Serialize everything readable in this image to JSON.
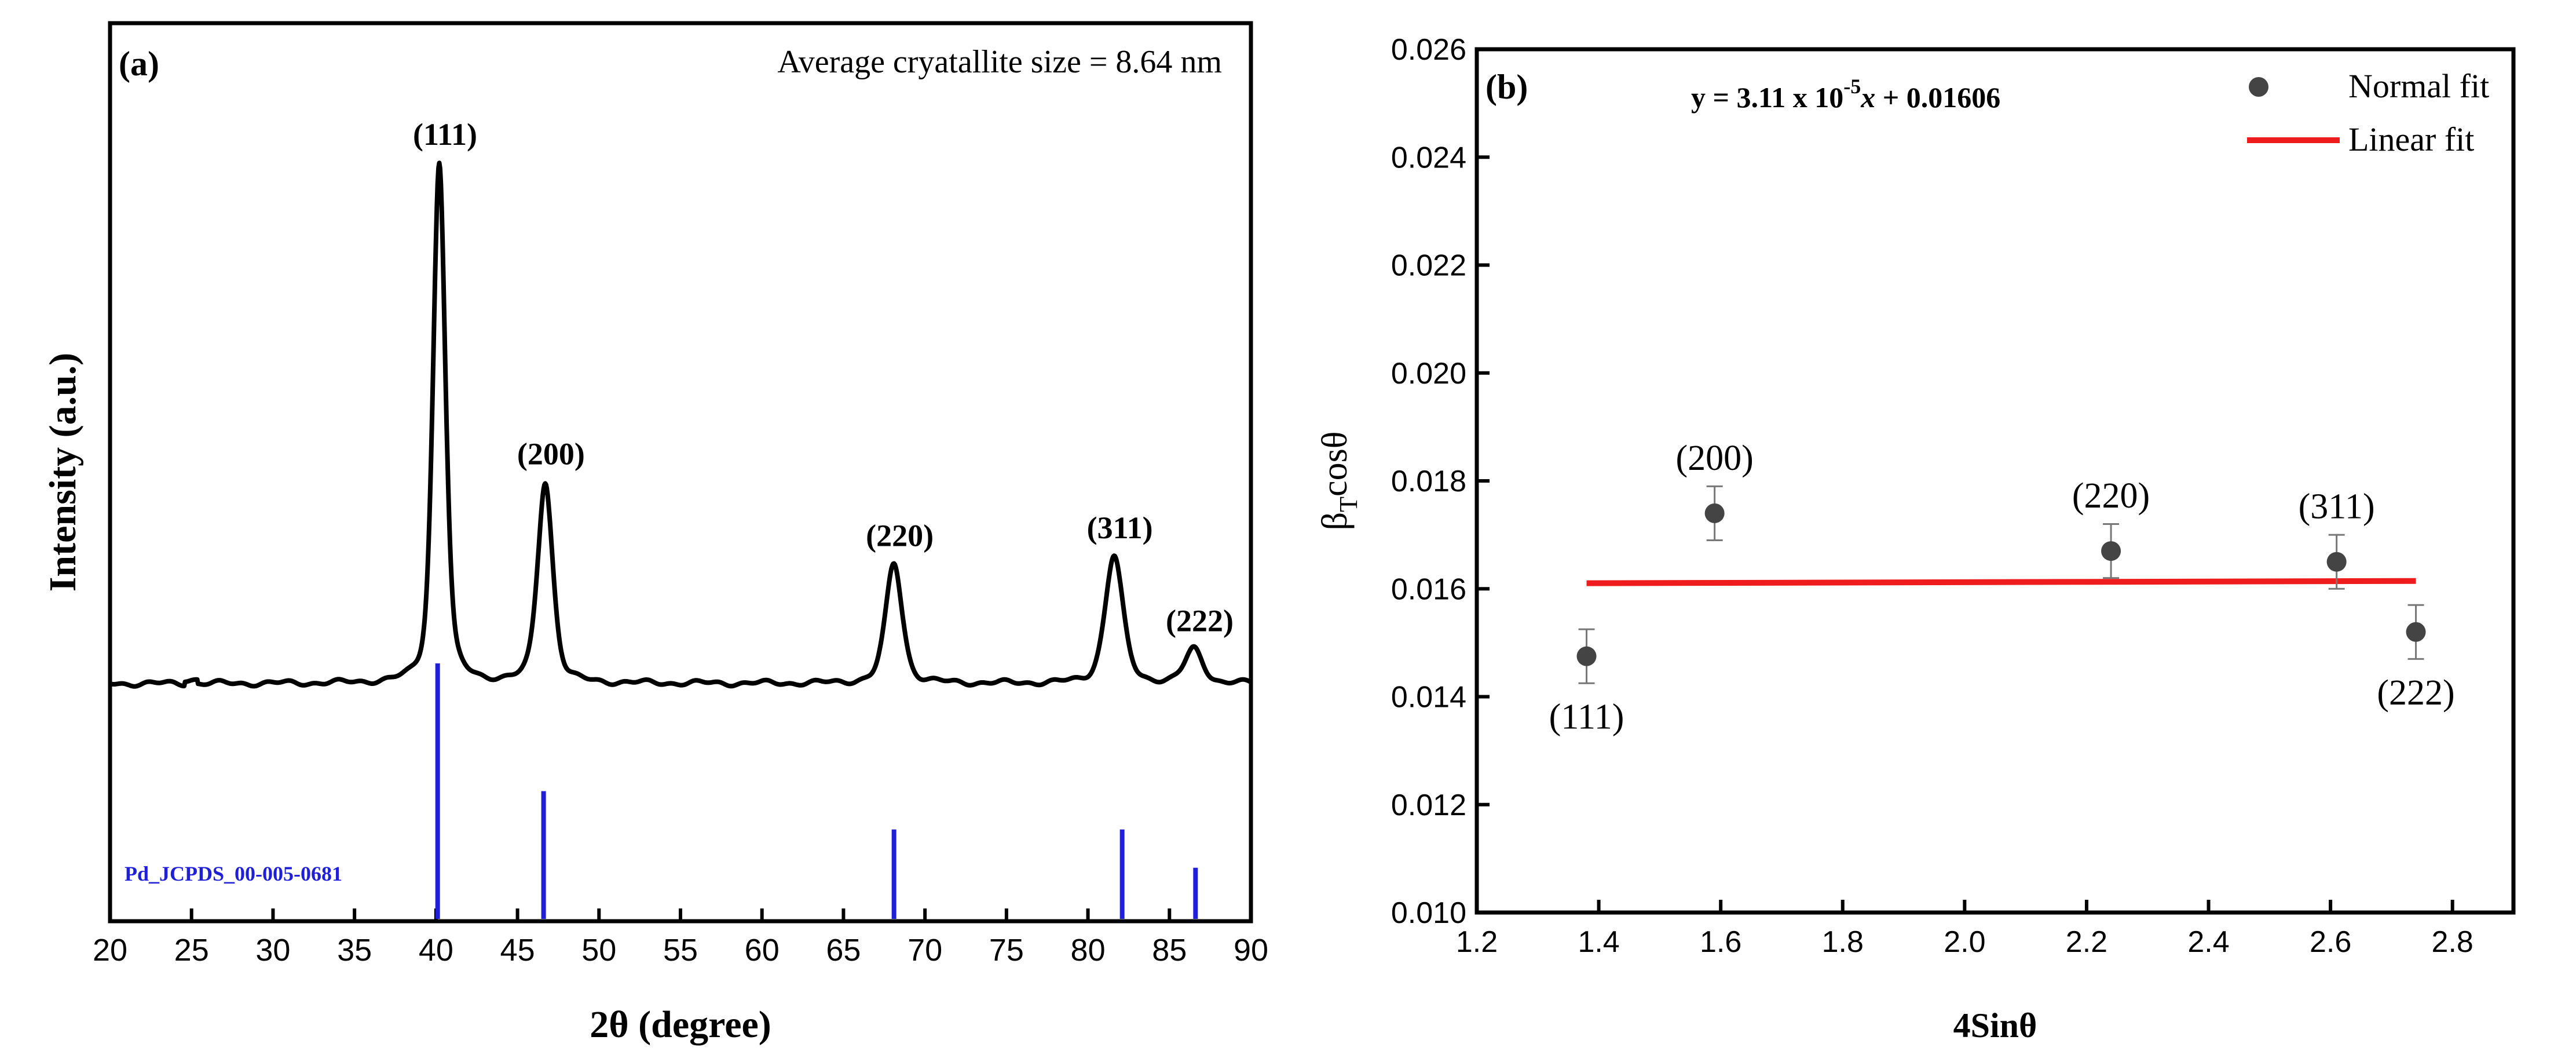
{
  "chart_data": [
    {
      "type": "line",
      "panel_label": "(a)",
      "annotation": "Average cryatallite size = 8.64 nm",
      "xlabel": "2θ (degree)",
      "ylabel": "Intensity (a.u.)",
      "xlim": [
        20,
        90
      ],
      "xticks": [
        "20",
        "25",
        "30",
        "35",
        "40",
        "45",
        "50",
        "55",
        "60",
        "65",
        "70",
        "75",
        "80",
        "85",
        "90"
      ],
      "y_ticks_shown": false,
      "series": [
        {
          "name": "XRD pattern",
          "color": "#000000",
          "baseline": 5,
          "peaks": [
            {
              "label": "(111)",
              "x": 40.2,
              "height": 100,
              "fwhm": 0.9
            },
            {
              "label": "(200)",
              "x": 46.7,
              "height": 38.5,
              "fwhm": 1.1
            },
            {
              "label": "(220)",
              "x": 68.1,
              "height": 23,
              "fwhm": 1.2
            },
            {
              "label": "(311)",
              "x": 81.6,
              "height": 24.5,
              "fwhm": 1.3
            },
            {
              "label": "(222)",
              "x": 86.5,
              "height": 6.5,
              "fwhm": 1.3
            }
          ]
        }
      ],
      "reference": {
        "name": "Pd_JCPDS_00-005-0681",
        "color": "#1f1fd8",
        "lines": [
          {
            "x": 40.1,
            "intensity": 100
          },
          {
            "x": 46.6,
            "intensity": 50
          },
          {
            "x": 68.1,
            "intensity": 35
          },
          {
            "x": 82.1,
            "intensity": 35
          },
          {
            "x": 86.6,
            "intensity": 20
          }
        ]
      }
    },
    {
      "type": "scatter",
      "panel_label": "(b)",
      "equation": {
        "prefix": "y = 3.11 x 10",
        "exponent": "-5",
        "var": "x",
        "suffix": " + 0.01606"
      },
      "xlabel": "4Sinθ",
      "ylabel": {
        "main": "β",
        "sub": "T",
        "rest": "cosθ"
      },
      "xlim": [
        1.2,
        2.9
      ],
      "ylim": [
        0.01,
        0.026
      ],
      "xticks": [
        "1.2",
        "1.4",
        "1.6",
        "1.8",
        "2.0",
        "2.2",
        "2.4",
        "2.6",
        "2.8"
      ],
      "yticks": [
        "0.010",
        "0.012",
        "0.014",
        "0.016",
        "0.018",
        "0.020",
        "0.022",
        "0.024",
        "0.026"
      ],
      "legend": {
        "position": "top-right",
        "entries": [
          "Normal fit",
          "Linear fit"
        ]
      },
      "points": [
        {
          "label": "(111)",
          "x": 1.38,
          "y": 0.01475,
          "err": 0.0005
        },
        {
          "label": "(200)",
          "x": 1.59,
          "y": 0.0174,
          "err": 0.0005
        },
        {
          "label": "(220)",
          "x": 2.24,
          "y": 0.0167,
          "err": 0.0005
        },
        {
          "label": "(311)",
          "x": 2.61,
          "y": 0.0165,
          "err": 0.0005
        },
        {
          "label": "(222)",
          "x": 2.74,
          "y": 0.0152,
          "err": 0.0005
        }
      ],
      "fit": {
        "name": "Linear fit",
        "x_range": [
          1.38,
          2.74
        ],
        "slope": 3.11e-05,
        "intercept": 0.01606,
        "color": "#ee1c1c"
      },
      "marker_color": "#444444"
    }
  ]
}
